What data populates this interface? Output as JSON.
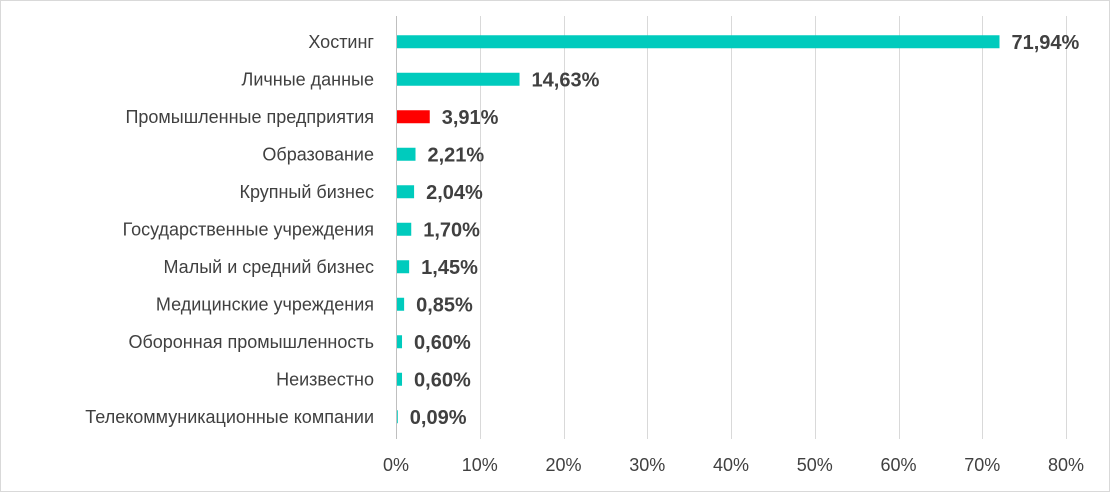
{
  "chart_data": {
    "type": "bar",
    "orientation": "horizontal",
    "categories": [
      "Хостинг",
      "Личные данные",
      "Промышленные предприятия",
      "Образование",
      "Крупный бизнес",
      "Государственные учреждения",
      "Малый и средний бизнес",
      "Медицинские учреждения",
      "Оборонная промышленность",
      "Неизвестно",
      "Телекоммуникационные компании"
    ],
    "values": [
      71.94,
      14.63,
      3.91,
      2.21,
      2.04,
      1.7,
      1.45,
      0.85,
      0.6,
      0.6,
      0.09
    ],
    "value_labels": [
      "71,94%",
      "14,63%",
      "3,91%",
      "2,21%",
      "2,04%",
      "1,70%",
      "1,45%",
      "0,85%",
      "0,60%",
      "0,60%",
      "0,09%"
    ],
    "bar_colors": [
      "#00cbbd",
      "#00cbbd",
      "#ff0000",
      "#00cbbd",
      "#00cbbd",
      "#00cbbd",
      "#00cbbd",
      "#00cbbd",
      "#00cbbd",
      "#00cbbd",
      "#00cbbd"
    ],
    "xticks": [
      0,
      10,
      20,
      30,
      40,
      50,
      60,
      70,
      80
    ],
    "xtick_labels": [
      "0%",
      "10%",
      "20%",
      "30%",
      "40%",
      "50%",
      "60%",
      "70%",
      "80%"
    ],
    "xlim": [
      0,
      80
    ],
    "grid": true,
    "legend": "none",
    "title": "",
    "xlabel": "",
    "ylabel": ""
  }
}
